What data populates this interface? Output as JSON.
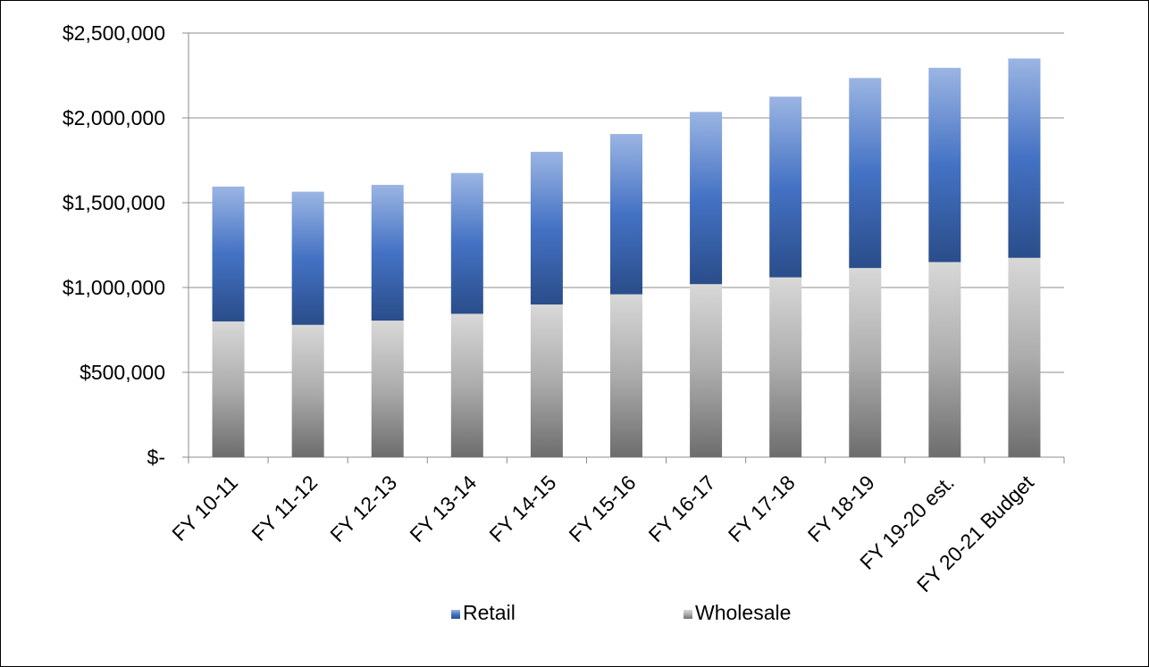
{
  "chart_data": {
    "type": "bar",
    "stacked": true,
    "title": "",
    "xlabel": "",
    "ylabel": "",
    "categories": [
      "FY 10-11",
      "FY 11-12",
      "FY 12-13",
      "FY 13-14",
      "FY 14-15",
      "FY 15-16",
      "FY 16-17",
      "FY 17-18",
      "FY 18-19",
      "FY 19-20 est.",
      "FY 20-21 Budget"
    ],
    "series": [
      {
        "name": "Wholesale",
        "color": "#9a9a9a",
        "values": [
          800000,
          780000,
          805000,
          845000,
          900000,
          960000,
          1020000,
          1060000,
          1115000,
          1150000,
          1175000
        ]
      },
      {
        "name": "Retail",
        "color": "#4472c4",
        "values": [
          795000,
          785000,
          800000,
          830000,
          900000,
          945000,
          1015000,
          1065000,
          1120000,
          1145000,
          1175000
        ]
      }
    ],
    "ylim": [
      0,
      2500000
    ],
    "yticks": [
      0,
      500000,
      1000000,
      1500000,
      2000000,
      2500000
    ],
    "ytick_labels": [
      "$-",
      "$500,000",
      "$1,000,000",
      "$1,500,000",
      "$2,000,000",
      "$2,500,000"
    ],
    "grid": true,
    "legend": {
      "position": "bottom",
      "entries": [
        "Retail",
        "Wholesale"
      ]
    }
  }
}
